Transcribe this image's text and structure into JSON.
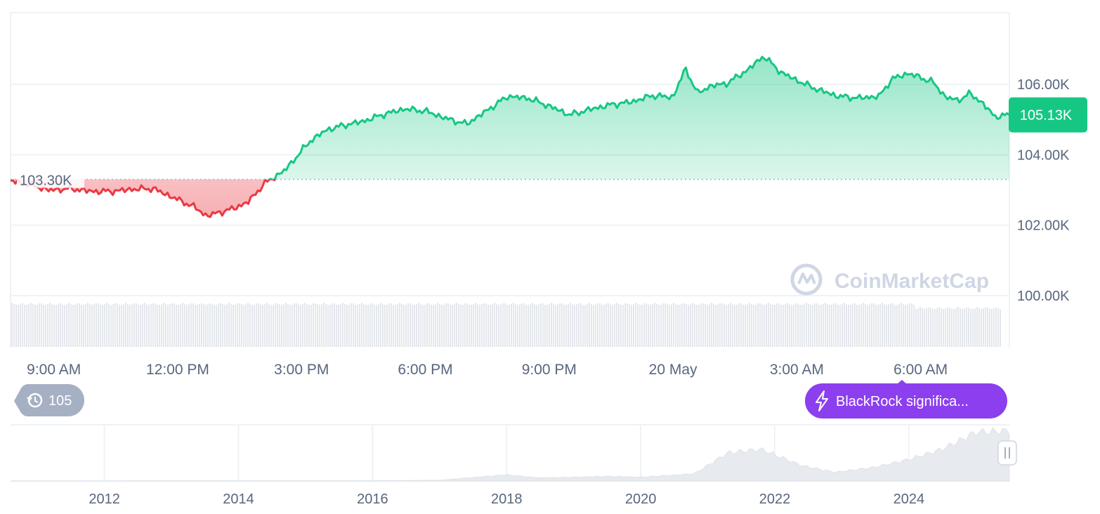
{
  "chart_data": {
    "type": "area",
    "title": "",
    "xlabel": "",
    "ylabel": "",
    "baseline": 103300,
    "baseline_label": "103.30K",
    "current_price": 105130,
    "current_label": "105.13K",
    "ylim": [
      98000,
      108000
    ],
    "y_ticks": [
      {
        "v": 100000,
        "label": "100.00K"
      },
      {
        "v": 102000,
        "label": "102.00K"
      },
      {
        "v": 104000,
        "label": "104.00K"
      },
      {
        "v": 106000,
        "label": "106.00K"
      }
    ],
    "x_ticks": [
      "9:00 AM",
      "12:00 PM",
      "3:00 PM",
      "6:00 PM",
      "9:00 PM",
      "20 May",
      "3:00 AM",
      "6:00 AM"
    ],
    "x_tick_hours": [
      9,
      12,
      15,
      18,
      21,
      24,
      27,
      30
    ],
    "xlim_hours": [
      7.95,
      32.15
    ],
    "series_hours": [
      7.95,
      8.4,
      8.9,
      9.4,
      9.9,
      10.4,
      10.9,
      11.4,
      11.9,
      12.4,
      12.7,
      13.0,
      13.3,
      13.7,
      14.1,
      14.6,
      15.2,
      15.6,
      16.0,
      16.5,
      17.0,
      17.5,
      18.0,
      18.5,
      19.0,
      19.5,
      20.0,
      20.5,
      21.0,
      21.5,
      22.0,
      22.5,
      23.0,
      23.5,
      24.0,
      24.3,
      24.6,
      24.9,
      25.3,
      25.8,
      26.2,
      26.6,
      27.0,
      27.5,
      28.0,
      28.5,
      29.0,
      29.3,
      29.7,
      30.0,
      30.3,
      30.6,
      30.9,
      31.2,
      31.5,
      31.8,
      32.15
    ],
    "series_prices": [
      103260,
      103150,
      102990,
      103040,
      102960,
      102960,
      103020,
      103040,
      102780,
      102520,
      102260,
      102360,
      102450,
      102650,
      103180,
      103560,
      104380,
      104700,
      104830,
      104950,
      105150,
      105300,
      105240,
      105030,
      104870,
      105260,
      105660,
      105600,
      105380,
      105130,
      105290,
      105420,
      105500,
      105680,
      105630,
      106450,
      105740,
      105950,
      106020,
      106400,
      106800,
      106350,
      106110,
      105850,
      105660,
      105610,
      105660,
      106150,
      106310,
      106190,
      106060,
      105640,
      105540,
      105740,
      105460,
      105080,
      105130
    ],
    "series_color_up": "#16c784",
    "series_color_down": "#ea3943",
    "volume_color": "#e4e7ec",
    "navigator": {
      "type": "area",
      "x_ticks": [
        "2012",
        "2014",
        "2016",
        "2018",
        "2020",
        "2022",
        "2024"
      ],
      "x_tick_years": [
        2012,
        2014,
        2016,
        2018,
        2020,
        2022,
        2024
      ],
      "xlim_years": [
        2010.6,
        2025.5
      ],
      "series_years": [
        2010.6,
        2013.0,
        2016.0,
        2017.0,
        2018.0,
        2018.5,
        2019.5,
        2020.0,
        2020.8,
        2021.3,
        2021.8,
        2022.4,
        2022.9,
        2023.5,
        2024.0,
        2024.5,
        2025.0,
        2025.5
      ],
      "series_values": [
        0,
        0.3,
        0.6,
        1.5,
        12.0,
        6.0,
        9.0,
        7.5,
        14.0,
        55.0,
        62.0,
        30.0,
        17.0,
        27.0,
        42.0,
        62.0,
        95.0,
        98.0
      ],
      "grid_color": "#eff2f5"
    },
    "watermark": "CoinMarketCap"
  },
  "badges": {
    "history_count": "105",
    "news_text": "BlackRock significa..."
  },
  "colors": {
    "up": "#16c784",
    "down": "#ea3943",
    "news_badge": "#8c3fee",
    "history_badge": "#a6b0c3",
    "axis_text": "#58667e"
  }
}
